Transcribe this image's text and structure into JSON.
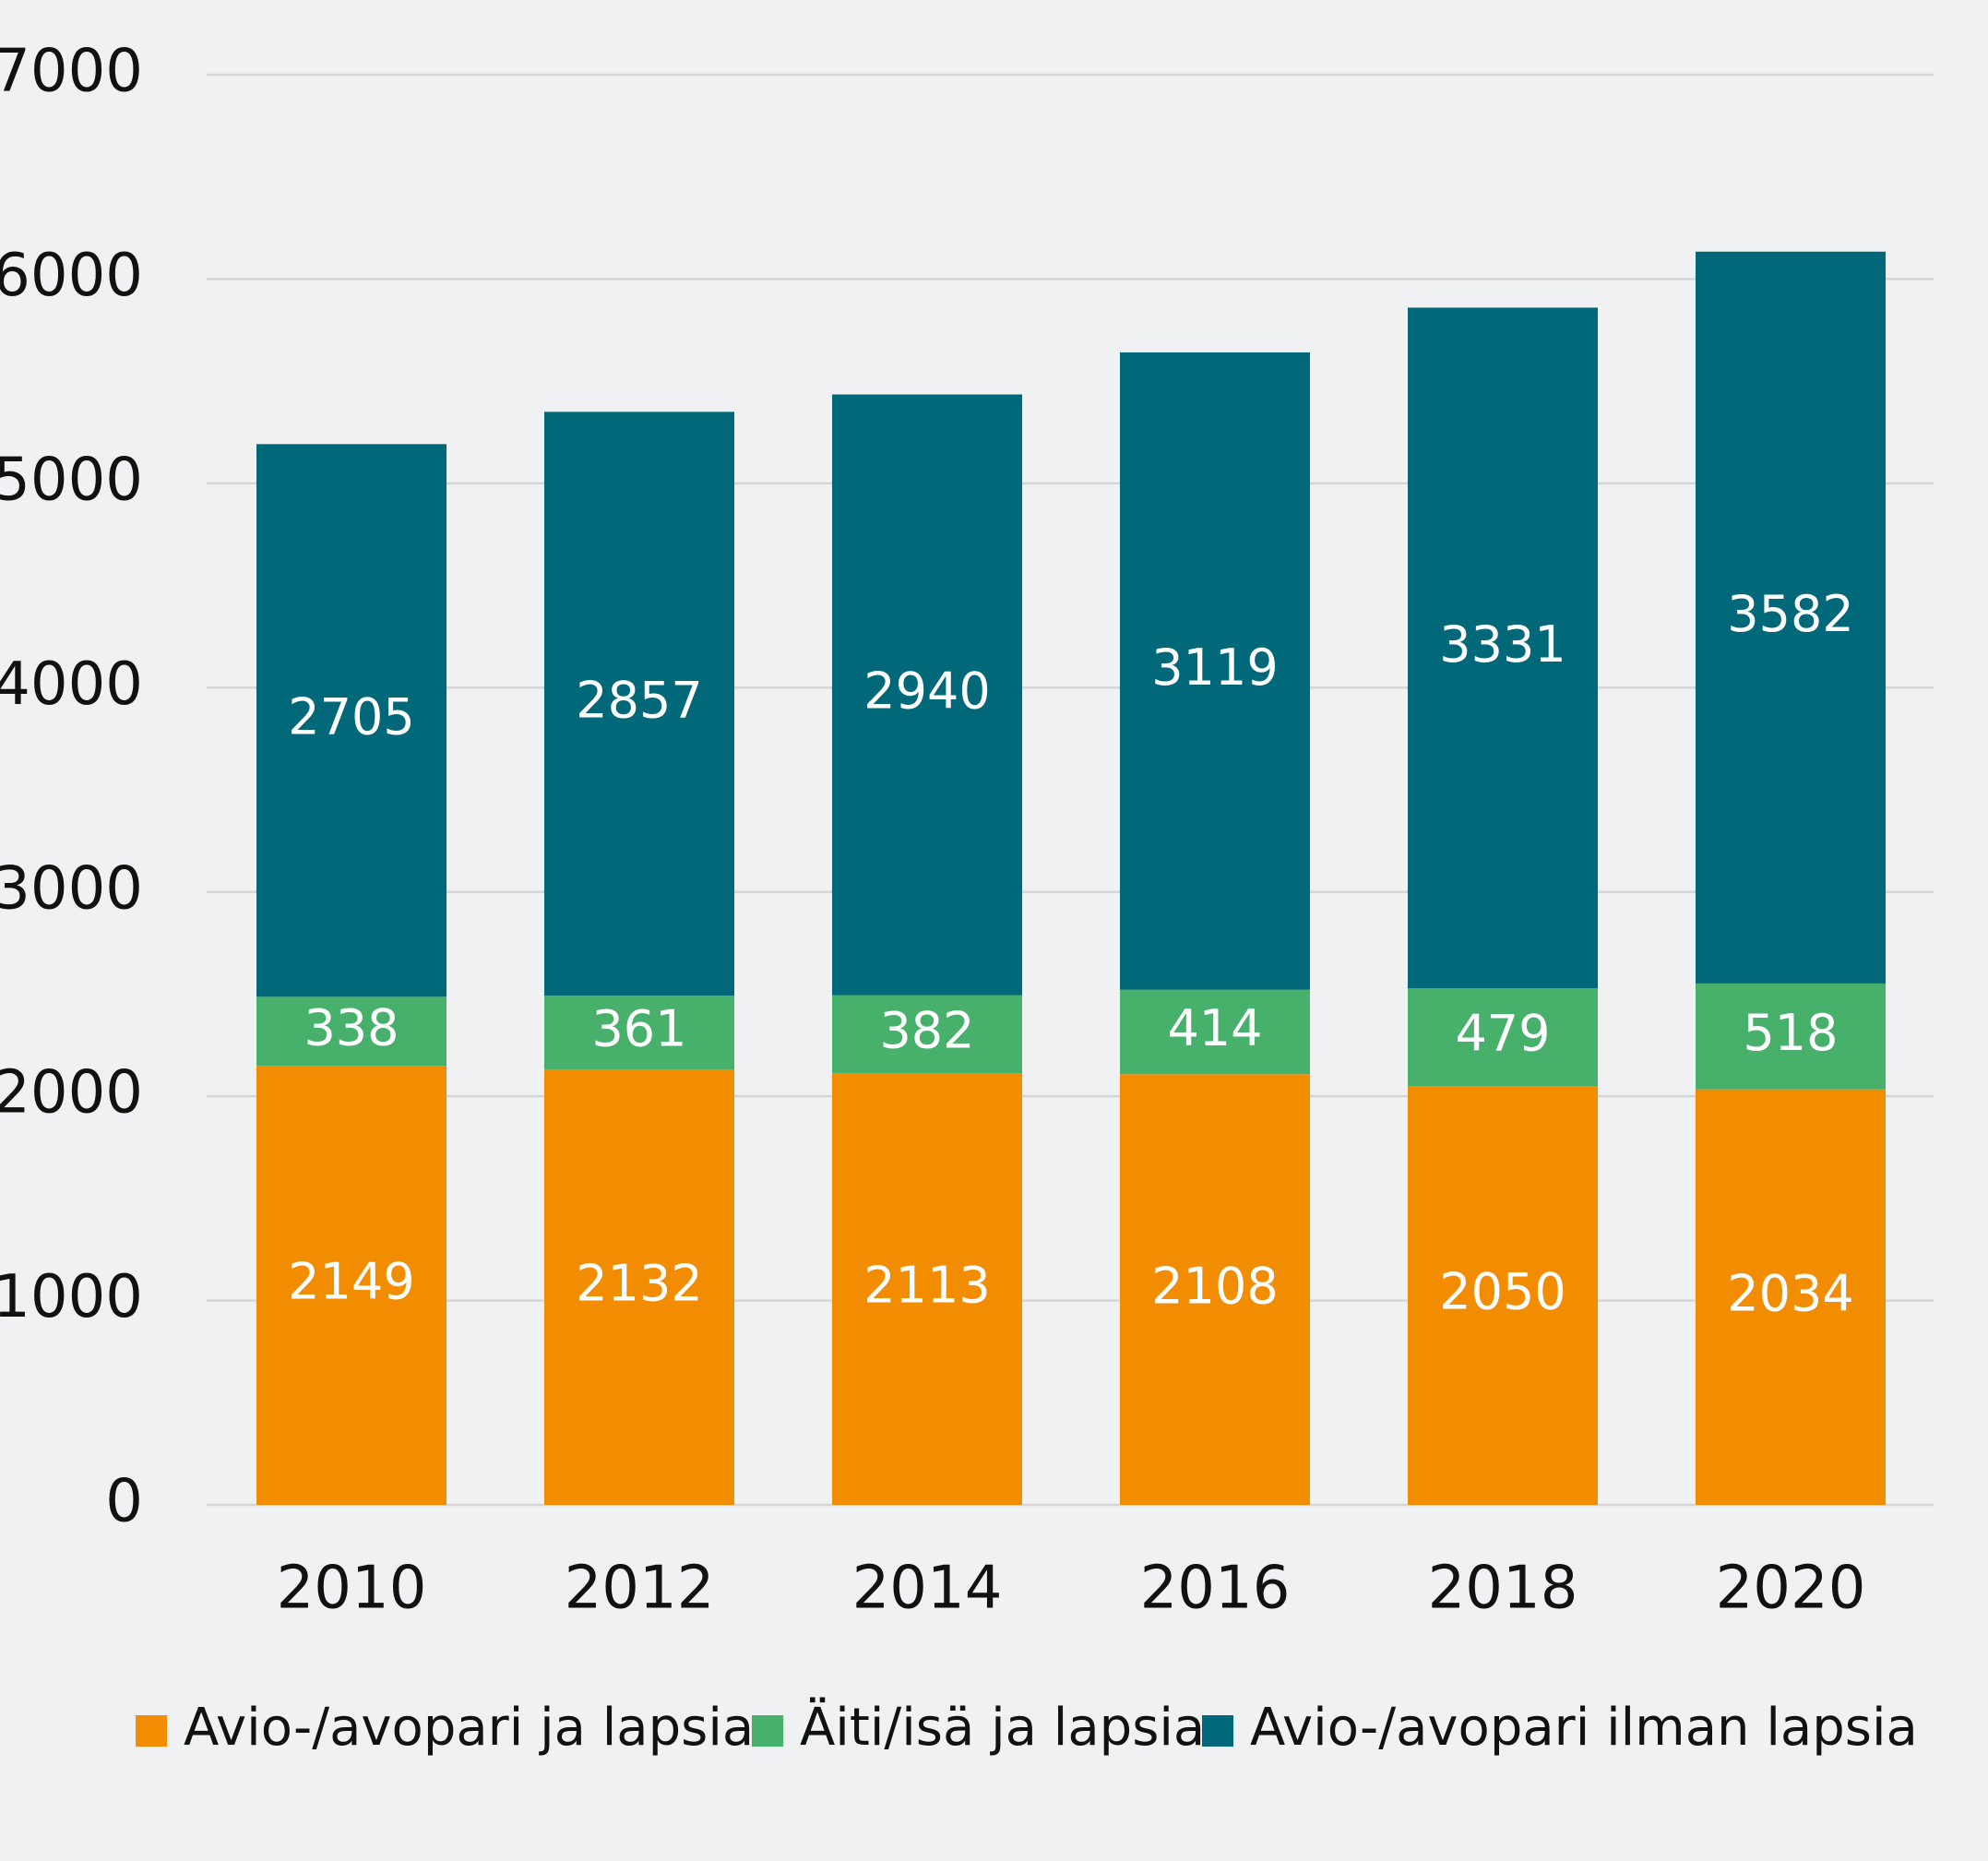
{
  "chart_data": {
    "type": "stacked_bar",
    "categories": [
      "2010",
      "2012",
      "2014",
      "2016",
      "2018",
      "2020"
    ],
    "series": [
      {
        "name": "Avio-/avopari ja lapsia",
        "color": "#f28c00",
        "values": [
          2149,
          2132,
          2113,
          2108,
          2050,
          2034
        ]
      },
      {
        "name": "Äiti/isä ja lapsia",
        "color": "#47b06b",
        "values": [
          338,
          361,
          382,
          414,
          479,
          518
        ]
      },
      {
        "name": "Avio-/avopari ilman lapsia",
        "color": "#006878",
        "values": [
          2705,
          2857,
          2940,
          3119,
          3331,
          3582
        ]
      }
    ],
    "ylim": [
      0,
      7000
    ],
    "yticks": [
      0,
      1000,
      2000,
      3000,
      4000,
      5000,
      6000,
      7000
    ],
    "grid": true,
    "legend": "bottom"
  }
}
